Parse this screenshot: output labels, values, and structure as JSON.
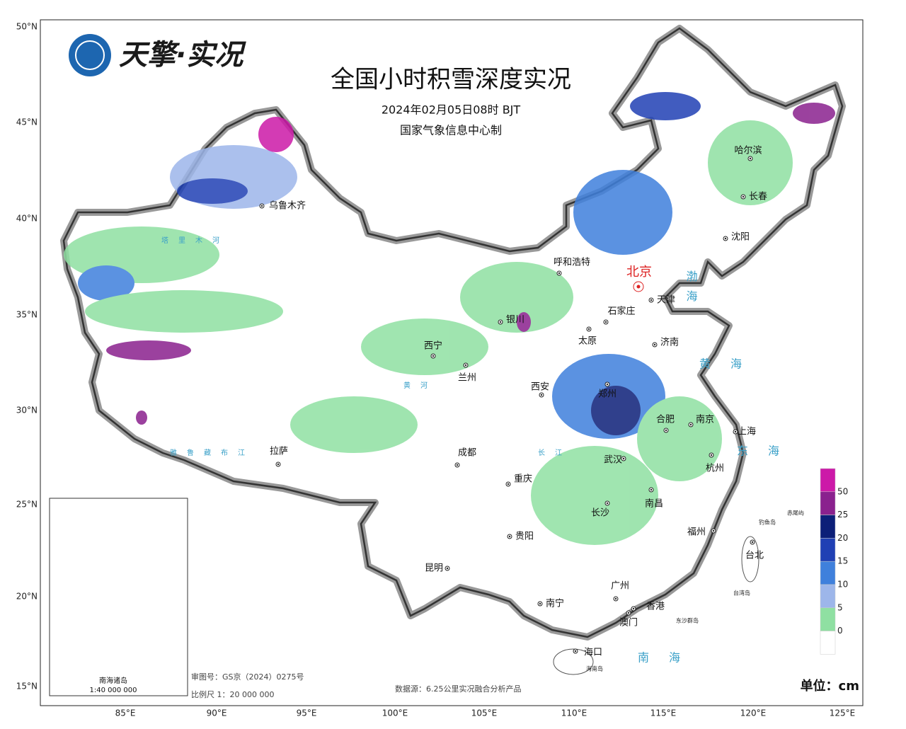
{
  "logo": "天擎·实况",
  "title": "全国小时积雪深度实况",
  "subtitle": "2024年02月05日08时 BJT",
  "producer": "国家气象信息中心制",
  "lat_labels": [
    "50°N",
    "45°N",
    "40°N",
    "35°N",
    "30°N",
    "25°N",
    "20°N",
    "15°N"
  ],
  "lon_labels": [
    "85°E",
    "90°E",
    "95°E",
    "100°E",
    "105°E",
    "110°E",
    "115°E",
    "120°E",
    "125°E"
  ],
  "capital": "北京",
  "cities": [
    "乌鲁木齐",
    "呼和浩特",
    "天津",
    "石家庄",
    "太原",
    "济南",
    "银川",
    "西宁",
    "兰州",
    "西安",
    "郑州",
    "合肥",
    "南京",
    "上海",
    "杭州",
    "武汉",
    "南昌",
    "长沙",
    "福州",
    "台北",
    "广州",
    "香港",
    "澳门",
    "南宁",
    "海口",
    "贵阳",
    "昆明",
    "重庆",
    "成都",
    "拉萨",
    "哈尔滨",
    "长春",
    "沈阳"
  ],
  "seas": [
    "渤海",
    "黄海",
    "东海",
    "南海"
  ],
  "rivers": [
    "塔里木河",
    "雅鲁藏布江",
    "黄河",
    "长江"
  ],
  "islands": [
    "钓鱼岛",
    "赤尾屿",
    "台湾岛",
    "东沙群岛",
    "海南岛"
  ],
  "legend": {
    "labels": [
      50,
      25,
      20,
      15,
      10,
      5,
      0
    ],
    "colors": [
      "#cc19a8",
      "#8a218e",
      "#0c1f78",
      "#2040b4",
      "#3f80dc",
      "#9db6ea",
      "#8fe0a2",
      "#ffffff"
    ],
    "unit": "单位：cm"
  },
  "notes": {
    "map_review": "审图号：GS京（2024）0275号",
    "scale": "比例尺 1：20 000 000",
    "source": "数据源：6.25公里实况融合分析产品"
  },
  "inset": {
    "title": "南海诸岛",
    "scale": "1:40 000 000"
  }
}
